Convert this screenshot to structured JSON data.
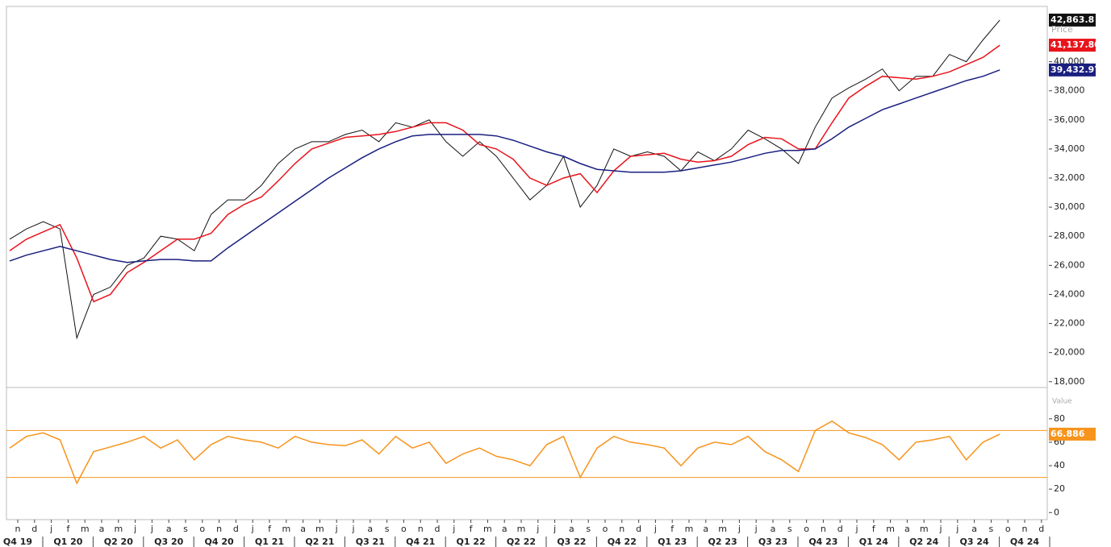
{
  "chart_data": [
    {
      "type": "line",
      "ylabel": "Price",
      "ylim": [
        17600,
        43800
      ],
      "yticks": [
        {
          "value": 18000,
          "label": "18,000"
        },
        {
          "value": 20000,
          "label": "20,000"
        },
        {
          "value": 22000,
          "label": "22,000"
        },
        {
          "value": 24000,
          "label": "24,000"
        },
        {
          "value": 26000,
          "label": "26,000"
        },
        {
          "value": 28000,
          "label": "28,000"
        },
        {
          "value": 30000,
          "label": "30,000"
        },
        {
          "value": 32000,
          "label": "32,000"
        },
        {
          "value": 34000,
          "label": "34,000"
        },
        {
          "value": 36000,
          "label": "36,000"
        },
        {
          "value": 38000,
          "label": "38,000"
        },
        {
          "value": 40000,
          "label": "40,000"
        }
      ],
      "series": [
        {
          "name": "Price",
          "color": "#111111",
          "last_label": "42,863.8",
          "values": [
            27800,
            28500,
            29000,
            28500,
            21000,
            24000,
            24500,
            26000,
            26500,
            28000,
            27800,
            27000,
            29500,
            30500,
            30500,
            31500,
            33000,
            34000,
            34500,
            34500,
            35000,
            35300,
            34500,
            35800,
            35500,
            36000,
            34500,
            33500,
            34500,
            33500,
            32000,
            30500,
            31500,
            33500,
            30000,
            31500,
            34000,
            33500,
            33800,
            33500,
            32500,
            33800,
            33200,
            34000,
            35300,
            34700,
            34000,
            33000,
            35500,
            37500,
            38200,
            38800,
            39500,
            38000,
            39000,
            39000,
            40500,
            40000,
            41500,
            42863.8,
            null,
            null
          ]
        },
        {
          "color": "#e8141c",
          "last_label": "41,137.80",
          "values": [
            27000,
            27800,
            28300,
            28800,
            26500,
            23500,
            24000,
            25500,
            26200,
            27000,
            27800,
            27800,
            28200,
            29500,
            30200,
            30700,
            31800,
            33000,
            34000,
            34400,
            34800,
            34900,
            35000,
            35200,
            35500,
            35800,
            35800,
            35300,
            34300,
            34000,
            33300,
            32000,
            31500,
            32000,
            32300,
            31000,
            32500,
            33500,
            33600,
            33700,
            33300,
            33100,
            33200,
            33500,
            34300,
            34800,
            34700,
            34000,
            34000,
            35800,
            37500,
            38300,
            39000,
            38900,
            38800,
            39000,
            39300,
            39800,
            40300,
            41137.8,
            null,
            null
          ]
        },
        {
          "color": "#1a1f80",
          "last_label": "39,432.97",
          "values": [
            26300,
            26700,
            27000,
            27300,
            27000,
            26700,
            26400,
            26200,
            26300,
            26400,
            26400,
            26300,
            26300,
            27200,
            28000,
            28800,
            29600,
            30400,
            31200,
            32000,
            32700,
            33400,
            34000,
            34500,
            34900,
            35000,
            35000,
            35000,
            35000,
            34900,
            34600,
            34200,
            33800,
            33500,
            33000,
            32600,
            32500,
            32400,
            32400,
            32400,
            32500,
            32700,
            32900,
            33100,
            33400,
            33700,
            33900,
            33900,
            34000,
            34700,
            35500,
            36100,
            36700,
            37100,
            37500,
            37900,
            38300,
            38700,
            39000,
            39432.97,
            null,
            null
          ]
        }
      ]
    },
    {
      "type": "line",
      "ylabel": "Value",
      "ylim": [
        -6,
        106
      ],
      "yticks": [
        0,
        20,
        40,
        60,
        80
      ],
      "levels": [
        30,
        70
      ],
      "level_color": "#f7941d",
      "categories": [
        "n",
        "d",
        "j",
        "f",
        "m",
        "a",
        "m",
        "j",
        "j",
        "a",
        "s",
        "o",
        "n",
        "d",
        "j",
        "f",
        "m",
        "a",
        "m",
        "j",
        "j",
        "a",
        "s",
        "o",
        "n",
        "d",
        "j",
        "f",
        "m",
        "a",
        "m",
        "j",
        "j",
        "a",
        "s",
        "o",
        "n",
        "d",
        "j",
        "f",
        "m",
        "a",
        "m",
        "j",
        "j",
        "a",
        "s",
        "o",
        "n",
        "d",
        "j",
        "f",
        "m",
        "a",
        "m",
        "j",
        "j",
        "a",
        "s",
        "o",
        "n",
        "d"
      ],
      "quarters": [
        "Q4 19",
        "Q1 20",
        "Q2 20",
        "Q3 20",
        "Q4 20",
        "Q1 21",
        "Q2 21",
        "Q3 21",
        "Q4 21",
        "Q1 22",
        "Q2 22",
        "Q3 22",
        "Q4 22",
        "Q1 23",
        "Q2 23",
        "Q3 23",
        "Q4 23",
        "Q1 24",
        "Q2 24",
        "Q3 24",
        "Q4 24"
      ],
      "series": [
        {
          "color": "#f7941d",
          "last_label": "66.886",
          "values": [
            55,
            65,
            68,
            62,
            25,
            52,
            56,
            60,
            65,
            55,
            62,
            45,
            58,
            65,
            62,
            60,
            55,
            65,
            60,
            58,
            57,
            62,
            50,
            65,
            55,
            60,
            42,
            50,
            55,
            48,
            45,
            40,
            58,
            65,
            30,
            55,
            65,
            60,
            58,
            55,
            40,
            55,
            60,
            58,
            65,
            52,
            45,
            35,
            70,
            78,
            68,
            64,
            58,
            45,
            60,
            62,
            65,
            45,
            60,
            66.886,
            null,
            null
          ]
        }
      ]
    }
  ]
}
